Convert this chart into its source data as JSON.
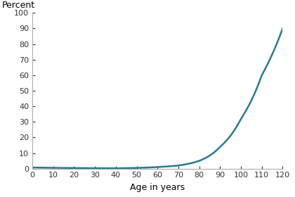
{
  "title": "",
  "ylabel": "Percent",
  "xlabel": "Age in years",
  "line_color": "#2a7a8c",
  "background_color": "#ffffff",
  "xlim": [
    0,
    120
  ],
  "ylim": [
    0,
    100
  ],
  "xticks": [
    0,
    10,
    20,
    30,
    40,
    50,
    60,
    70,
    80,
    90,
    100,
    110,
    120
  ],
  "yticks": [
    0,
    10,
    20,
    30,
    40,
    50,
    60,
    70,
    80,
    90,
    100
  ],
  "line_width": 1.8,
  "key_points_x": [
    0,
    40,
    60,
    70,
    80,
    90,
    100,
    110,
    120
  ],
  "key_points_y": [
    0.7,
    0.2,
    1.0,
    2.0,
    5.0,
    14.0,
    32.0,
    60.0,
    90.0
  ]
}
